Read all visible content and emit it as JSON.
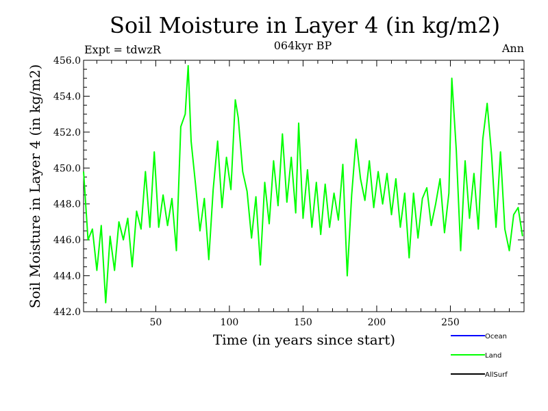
{
  "chart_data": {
    "type": "line",
    "title": "Soil Moisture in Layer 4 (in kg/m2)",
    "subtitle": "064kyr BP",
    "left_note": "Expt = tdwzR",
    "right_note": "Ann",
    "xlabel": "Time (in years since start)",
    "ylabel": "Soil Moisture in Layer 4 (in kg/m2)",
    "xlim": [
      1,
      300
    ],
    "ylim": [
      442.0,
      456.0
    ],
    "x_ticks": [
      50,
      100,
      150,
      200,
      250
    ],
    "x_tick_labels": [
      "50",
      "100",
      "150",
      "200",
      "250"
    ],
    "y_ticks": [
      442,
      444,
      446,
      448,
      450,
      452,
      454,
      456
    ],
    "y_tick_labels": [
      "442.0",
      "444.0",
      "446.0",
      "448.0",
      "450.0",
      "452.0",
      "454.0",
      "456.0"
    ],
    "legend": [
      {
        "name": "Ocean",
        "color": "#0000ff"
      },
      {
        "name": "Land",
        "color": "#00ff00"
      },
      {
        "name": "AllSurf",
        "color": "#000000"
      }
    ],
    "series": [
      {
        "name": "Land",
        "color": "#00ff00",
        "x": [
          1,
          4,
          7,
          10,
          13,
          16,
          19,
          22,
          25,
          28,
          31,
          34,
          37,
          40,
          43,
          46,
          49,
          52,
          55,
          58,
          61,
          64,
          67,
          70,
          72,
          74,
          77,
          80,
          83,
          86,
          89,
          92,
          95,
          98,
          101,
          104,
          106,
          109,
          112,
          115,
          118,
          121,
          124,
          127,
          130,
          133,
          136,
          139,
          142,
          145,
          147,
          150,
          153,
          156,
          159,
          162,
          165,
          168,
          171,
          174,
          177,
          180,
          183,
          186,
          189,
          192,
          195,
          198,
          201,
          204,
          207,
          210,
          213,
          216,
          219,
          222,
          225,
          228,
          231,
          234,
          237,
          240,
          243,
          246,
          249,
          251,
          254,
          257,
          260,
          263,
          266,
          269,
          272,
          275,
          278,
          281,
          284,
          287,
          290,
          293,
          296,
          299
        ],
        "values": [
          449.8,
          446.0,
          446.6,
          444.3,
          446.8,
          442.5,
          446.2,
          444.3,
          447.0,
          446.0,
          447.2,
          444.5,
          447.6,
          446.6,
          449.8,
          446.7,
          450.9,
          446.7,
          448.5,
          446.8,
          448.3,
          445.4,
          452.3,
          453.0,
          455.7,
          451.5,
          449.1,
          446.5,
          448.3,
          444.9,
          448.8,
          451.5,
          447.8,
          450.6,
          448.8,
          453.8,
          452.8,
          449.8,
          448.7,
          446.1,
          448.4,
          444.6,
          449.2,
          446.9,
          450.4,
          447.9,
          451.9,
          448.1,
          450.6,
          447.5,
          452.5,
          447.2,
          449.9,
          446.7,
          449.2,
          446.3,
          449.1,
          446.7,
          448.6,
          447.1,
          450.2,
          444.0,
          448.5,
          451.6,
          449.4,
          448.2,
          450.4,
          447.8,
          449.8,
          448.0,
          449.7,
          447.4,
          449.4,
          446.7,
          448.6,
          445.0,
          448.6,
          446.1,
          448.3,
          448.9,
          446.8,
          448.0,
          449.4,
          446.4,
          448.6,
          455.0,
          451.0,
          445.4,
          450.4,
          447.2,
          449.7,
          446.6,
          451.6,
          453.6,
          450.7,
          446.7,
          450.9,
          446.6,
          445.4,
          447.4,
          447.8,
          446.2
        ]
      }
    ]
  }
}
